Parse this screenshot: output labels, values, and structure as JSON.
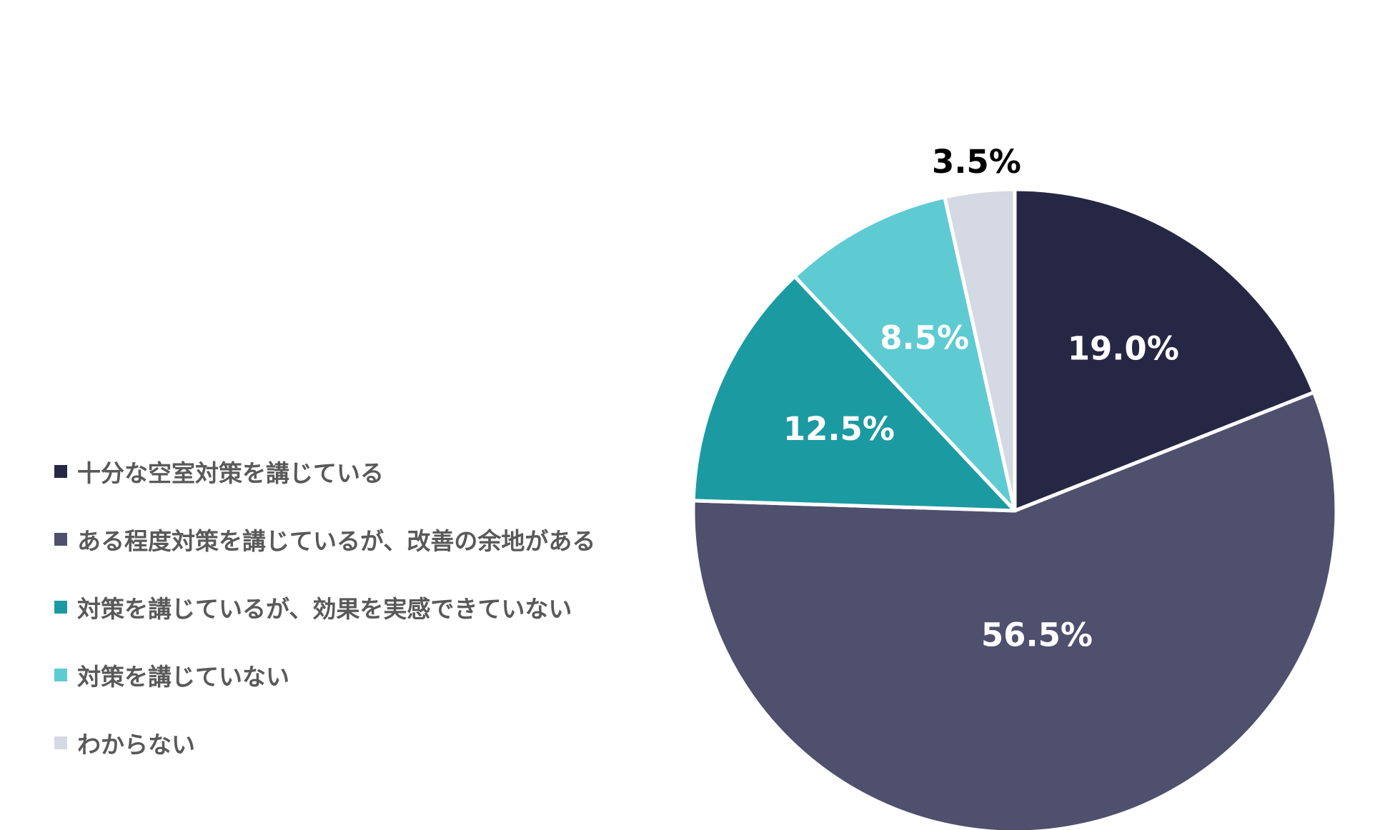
{
  "chart_data": {
    "type": "pie",
    "start_angle_deg": 0,
    "direction": "clockwise",
    "legend_position": "left",
    "slices": [
      {
        "label": "十分な空室対策を講じている",
        "value": 19.0,
        "value_label": "19.0%",
        "color": "#262744",
        "label_color": "#ffffff"
      },
      {
        "label": "ある程度対策を講じているが、改善の余地がある",
        "value": 56.5,
        "value_label": "56.5%",
        "color": "#4f506e",
        "label_color": "#ffffff"
      },
      {
        "label": "対策を講じているが、効果を実感できていない",
        "value": 12.5,
        "value_label": "12.5%",
        "color": "#1c9aa2",
        "label_color": "#ffffff"
      },
      {
        "label": "対策を講じていない",
        "value": 8.5,
        "value_label": "8.5%",
        "color": "#5ecbd3",
        "label_color": "#ffffff"
      },
      {
        "label": "わからない",
        "value": 3.5,
        "value_label": "3.5%",
        "color": "#d5d9e4",
        "label_color": "#000000"
      }
    ]
  }
}
